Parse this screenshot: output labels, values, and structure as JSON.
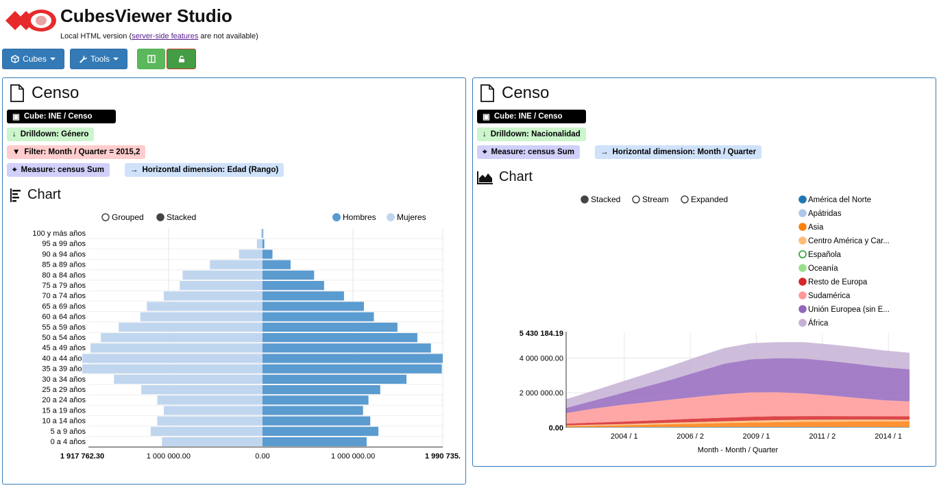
{
  "app": {
    "title": "CubesViewer Studio",
    "subtitle_prefix": "Local HTML version (",
    "subtitle_link": "server-side features",
    "subtitle_suffix": " are not available)"
  },
  "toolbar": {
    "cubes_label": "Cubes",
    "tools_label": "Tools"
  },
  "panels": [
    {
      "title": "Censo",
      "tags": {
        "cube": "Cube: INE / Censo",
        "drilldown": "Drilldown: Género",
        "filter": "Filter: Month / Quarter = 2015,2",
        "measure": "Measure: census Sum",
        "horizontal": "Horizontal dimension: Edad (Rango)"
      },
      "section_title": "Chart"
    },
    {
      "title": "Censo",
      "tags": {
        "cube": "Cube: INE / Censo",
        "drilldown": "Drilldown: Nacionalidad",
        "measure": "Measure: census Sum",
        "horizontal": "Horizontal dimension: Month / Quarter"
      },
      "section_title": "Chart"
    }
  ],
  "chart_data": [
    {
      "type": "bar",
      "orientation": "horizontal-pyramid",
      "modes": [
        "Grouped",
        "Stacked"
      ],
      "selected_mode": "Stacked",
      "categories": [
        "100 y más años",
        "95 a 99 años",
        "90 a 94 años",
        "85 a 89 años",
        "80 a 84 años",
        "75 a 79 años",
        "70 a 74 años",
        "65 a 69 años",
        "60 a 64 años",
        "55 a 59 años",
        "50 a 54 años",
        "45 a 49 años",
        "40 a 44 años",
        "35 a 39 años",
        "30 a 34 años",
        "25 a 29 años",
        "20 a 24 años",
        "15 a 19 años",
        "10 a 14 años",
        "5 a 9 años",
        "0 a 4 años"
      ],
      "series": [
        {
          "name": "Hombres",
          "color": "#5a9bd0",
          "values": [
            8000,
            20000,
            110000,
            310000,
            570000,
            680000,
            900000,
            1120000,
            1230000,
            1490000,
            1710000,
            1860000,
            1990000,
            1980000,
            1590000,
            1300000,
            1170000,
            1110000,
            1190000,
            1280000,
            1150000
          ]
        },
        {
          "name": "Mujeres",
          "color": "#c0d6ef",
          "values": [
            15000,
            60000,
            250000,
            560000,
            850000,
            880000,
            1050000,
            1230000,
            1300000,
            1530000,
            1720000,
            1830000,
            1917762,
            1917000,
            1580000,
            1290000,
            1120000,
            1050000,
            1120000,
            1190000,
            1070000
          ]
        }
      ],
      "axis_labels": {
        "left_max": "1 917 762.30",
        "left_mid": "1 000 000.00",
        "center": "0.00",
        "right_mid": "1 000 000.00",
        "right_max": "1 990 735."
      },
      "xlim": [
        -1917762.3,
        1990735
      ]
    },
    {
      "type": "area",
      "modes": [
        "Stacked",
        "Stream",
        "Expanded"
      ],
      "selected_mode": "Stacked",
      "xlabel": "Month - Month / Quarter",
      "x_ticks": [
        "2004 / 1",
        "2006 / 2",
        "2009 / 1",
        "2011 / 2",
        "2014 / 1"
      ],
      "y_ticks": [
        "0.00",
        "2 000 000.00",
        "4 000 000.00"
      ],
      "y_max_label": "5 430 184.19",
      "ylim": [
        0,
        5430184.19
      ],
      "x": [
        2002,
        2003,
        2004,
        2005,
        2006,
        2007,
        2008,
        2009,
        2010,
        2011,
        2012,
        2013,
        2014,
        2015
      ],
      "series": [
        {
          "name": "América del Norte",
          "color": "#1f77b4",
          "values": [
            20000,
            22000,
            25000,
            27000,
            30000,
            32000,
            34000,
            35000,
            35000,
            35000,
            34000,
            33000,
            32000,
            31000
          ]
        },
        {
          "name": "Apátridas",
          "color": "#aec7e8",
          "values": [
            500,
            500,
            500,
            500,
            500,
            500,
            500,
            500,
            500,
            500,
            500,
            500,
            500,
            500
          ]
        },
        {
          "name": "Asia",
          "color": "#ff7f0e",
          "values": [
            70000,
            90000,
            110000,
            140000,
            170000,
            200000,
            230000,
            260000,
            280000,
            300000,
            310000,
            320000,
            325000,
            330000
          ]
        },
        {
          "name": "Centro América y Car...",
          "color": "#ffbb78",
          "values": [
            40000,
            50000,
            60000,
            70000,
            80000,
            90000,
            100000,
            110000,
            115000,
            115000,
            110000,
            105000,
            100000,
            95000
          ]
        },
        {
          "name": "Española",
          "color": "#2ca02c",
          "values": [
            0,
            0,
            0,
            0,
            0,
            0,
            0,
            0,
            0,
            0,
            0,
            0,
            0,
            0
          ],
          "hidden": true
        },
        {
          "name": "Oceanía",
          "color": "#98df8a",
          "values": [
            1000,
            1000,
            1000,
            1000,
            1000,
            1000,
            1000,
            1000,
            1000,
            1000,
            1000,
            1000,
            1000,
            1000
          ]
        },
        {
          "name": "Resto de Europa",
          "color": "#d62728",
          "values": [
            100000,
            120000,
            140000,
            160000,
            180000,
            200000,
            210000,
            220000,
            220000,
            215000,
            210000,
            200000,
            195000,
            190000
          ]
        },
        {
          "name": "Sudamérica",
          "color": "#ff9896",
          "values": [
            600000,
            800000,
            950000,
            1050000,
            1150000,
            1250000,
            1350000,
            1400000,
            1380000,
            1300000,
            1180000,
            1050000,
            920000,
            850000
          ]
        },
        {
          "name": "Unión Europea (sin E...",
          "color": "#9467bd",
          "values": [
            300000,
            450000,
            650000,
            900000,
            1150000,
            1450000,
            1750000,
            1900000,
            1950000,
            2000000,
            1980000,
            1950000,
            1900000,
            1850000
          ]
        },
        {
          "name": "África",
          "color": "#c5b0d5",
          "values": [
            500000,
            570000,
            650000,
            720000,
            800000,
            860000,
            900000,
            920000,
            930000,
            940000,
            950000,
            960000,
            960000,
            950000
          ]
        }
      ]
    }
  ]
}
